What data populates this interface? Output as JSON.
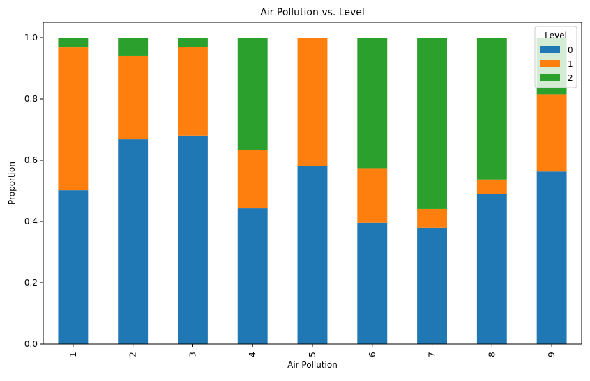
{
  "chart_data": {
    "type": "bar",
    "stacked": true,
    "title": "Air Pollution vs. Level",
    "xlabel": "Air Pollution",
    "ylabel": "Proportion",
    "categories": [
      "1",
      "2",
      "3",
      "4",
      "5",
      "6",
      "7",
      "8",
      "9"
    ],
    "ylim": [
      0,
      1.05
    ],
    "yticks": [
      "0.0",
      "0.2",
      "0.4",
      "0.6",
      "0.8",
      "1.0"
    ],
    "grid": false,
    "legend": {
      "title": "Level",
      "placement": "top-right"
    },
    "series": [
      {
        "name": "0",
        "color": "#1f77b4",
        "values": [
          0.502,
          0.668,
          0.68,
          0.443,
          0.58,
          0.396,
          0.38,
          0.489,
          0.563
        ]
      },
      {
        "name": "1",
        "color": "#ff7f0e",
        "values": [
          0.466,
          0.273,
          0.29,
          0.191,
          0.42,
          0.178,
          0.061,
          0.048,
          0.252
        ]
      },
      {
        "name": "2",
        "color": "#2ca02c",
        "values": [
          0.032,
          0.059,
          0.03,
          0.366,
          0.0,
          0.426,
          0.559,
          0.463,
          0.185
        ]
      }
    ]
  }
}
